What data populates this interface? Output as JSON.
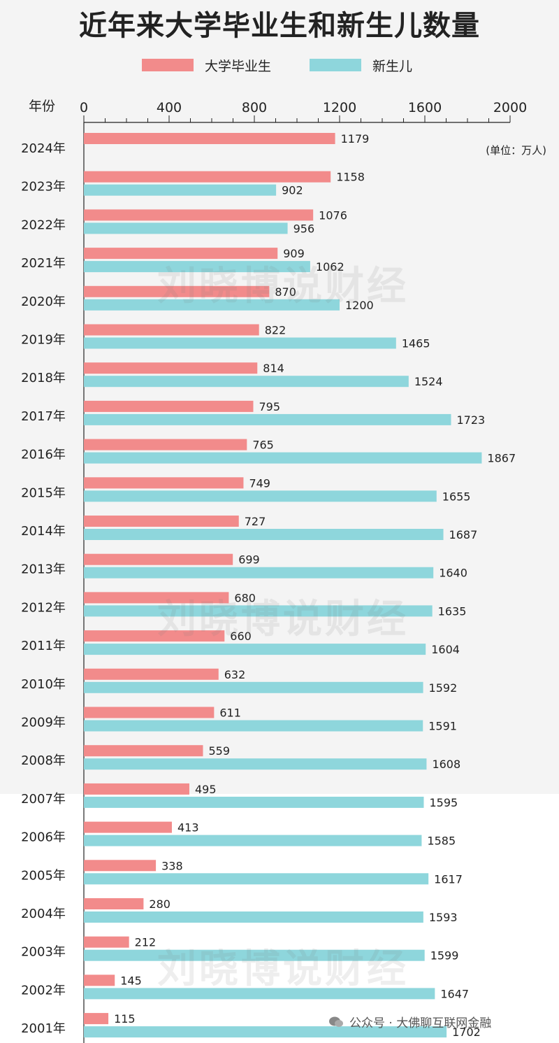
{
  "title": "近年来大学毕业生和新生儿数量",
  "legend": [
    {
      "name": "大学毕业生",
      "color": "#f28b8b"
    },
    {
      "name": "新生儿",
      "color": "#8ed6dc"
    }
  ],
  "unit_note": "(单位：万人)",
  "watermark": "刘晓博说财经",
  "footer": "公众号 · 大佛聊互联网金融",
  "chart_data": {
    "type": "bar",
    "orientation": "horizontal",
    "title": "近年来大学毕业生和新生儿数量",
    "ylabel": "年份",
    "xlim": [
      0,
      2000
    ],
    "x_ticks": [
      "0",
      "400",
      "800",
      "1200",
      "1600",
      "2000"
    ],
    "legend_position": "top",
    "categories": [
      "2024年",
      "2023年",
      "2022年",
      "2021年",
      "2020年",
      "2019年",
      "2018年",
      "2017年",
      "2016年",
      "2015年",
      "2014年",
      "2013年",
      "2012年",
      "2011年",
      "2010年",
      "2009年",
      "2008年",
      "2007年",
      "2006年",
      "2005年",
      "2004年",
      "2003年",
      "2002年",
      "2001年"
    ],
    "series": [
      {
        "name": "大学毕业生",
        "color": "#f28b8b",
        "values": [
          1179,
          1158,
          1076,
          909,
          870,
          822,
          814,
          795,
          765,
          749,
          727,
          699,
          680,
          660,
          632,
          611,
          559,
          495,
          413,
          338,
          280,
          212,
          145,
          115
        ]
      },
      {
        "name": "新生儿",
        "color": "#8ed6dc",
        "values": [
          null,
          902,
          956,
          1062,
          1200,
          1465,
          1524,
          1723,
          1867,
          1655,
          1687,
          1640,
          1635,
          1604,
          1592,
          1591,
          1608,
          1595,
          1585,
          1617,
          1593,
          1599,
          1647,
          1702
        ]
      }
    ]
  }
}
